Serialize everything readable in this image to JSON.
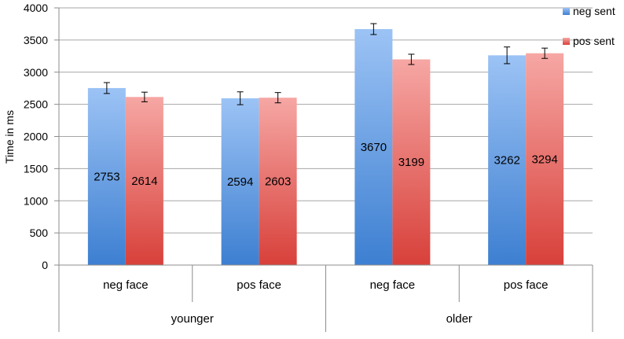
{
  "chart_data": {
    "type": "bar",
    "title": "",
    "ylabel": "Time in ms",
    "xlabel": "",
    "ylim": [
      0,
      4000
    ],
    "yticks": [
      0,
      500,
      1000,
      1500,
      2000,
      2500,
      3000,
      3500,
      4000
    ],
    "grid": true,
    "legend_position": "top-right",
    "categories": [
      "neg face",
      "pos face",
      "neg face",
      "pos face"
    ],
    "groups": [
      {
        "label": "younger",
        "span": [
          0,
          1
        ]
      },
      {
        "label": "older",
        "span": [
          2,
          3
        ]
      }
    ],
    "series": [
      {
        "name": "neg sent",
        "values": [
          2753,
          2594,
          3670,
          3262
        ],
        "errors": [
          85,
          100,
          85,
          130
        ],
        "color_top": "#9cc3f5",
        "color_bottom": "#3d7fd1"
      },
      {
        "name": "pos sent",
        "values": [
          2614,
          2603,
          3199,
          3294
        ],
        "errors": [
          75,
          80,
          80,
          80
        ],
        "color_top": "#f6a7a4",
        "color_bottom": "#d8403a"
      }
    ]
  }
}
